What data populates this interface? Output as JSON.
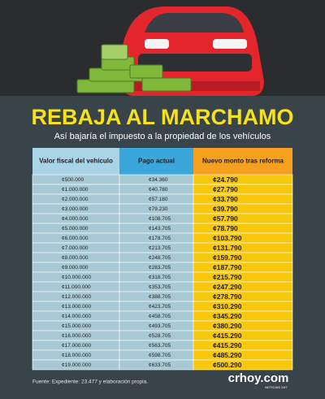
{
  "header": {
    "title": "REBAJA AL MARCHAMO",
    "subtitle": "Así bajaría el impuesto a la propiedad de los vehículos"
  },
  "table": {
    "columns": [
      "Valor fiscal del vehículo",
      "Pago actual",
      "Nuevo monto tras reforma"
    ],
    "rows": [
      [
        "¢500.000",
        "¢34.360",
        "¢24.790"
      ],
      [
        "¢1.000.000",
        "¢40.780",
        "¢27.790"
      ],
      [
        "¢2.000.000",
        "¢57.180",
        "¢33.790"
      ],
      [
        "¢3.000.000",
        "¢79.230",
        "¢39.790"
      ],
      [
        "¢4.000.000",
        "¢108.705",
        "¢57.790"
      ],
      [
        "¢5.000.000",
        "¢143.705",
        "¢78.790"
      ],
      [
        "¢6.000.000",
        "¢178.705",
        "¢103.790"
      ],
      [
        "¢7.000.000",
        "¢213.705",
        "¢131.790"
      ],
      [
        "¢8.000.000",
        "¢248.705",
        "¢159.790"
      ],
      [
        "¢9.000.000",
        "¢283.705",
        "¢187.790"
      ],
      [
        "¢10.000.000",
        "¢318.705",
        "¢215.790"
      ],
      [
        "¢11.000.000",
        "¢353.705",
        "¢247.290"
      ],
      [
        "¢12.000.000",
        "¢388.705",
        "¢278.790"
      ],
      [
        "¢13.000.000",
        "¢423.705",
        "¢310.290"
      ],
      [
        "¢14.000.000",
        "¢458.705",
        "¢345.290"
      ],
      [
        "¢15.000.000",
        "¢493.705",
        "¢380.290"
      ],
      [
        "¢16.000.000",
        "¢528.705",
        "¢415.290"
      ],
      [
        "¢17.000.000",
        "¢563.705",
        "¢415.290"
      ],
      [
        "¢18.000.000",
        "¢598.705",
        "¢485.290"
      ],
      [
        "¢19.000.000",
        "¢633.705",
        "¢500.290"
      ]
    ]
  },
  "footer": {
    "source": "Fuente: Expediente: 23.477 y elaboración propia.",
    "logo": "crhoy.com",
    "tagline": "NOTICIAS 24/7"
  }
}
